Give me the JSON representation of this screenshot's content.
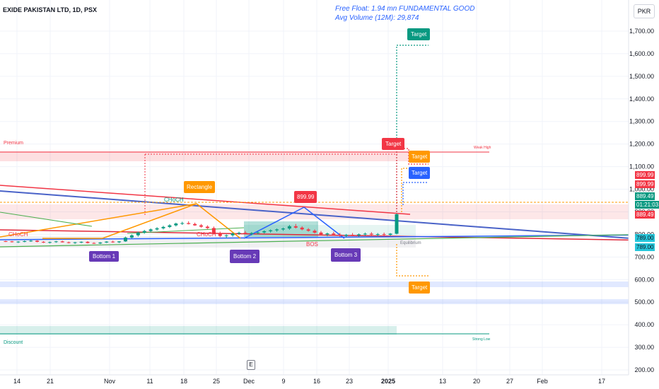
{
  "header": {
    "symbol_title": "EXIDE PAKISTAN LTD, 1D, PSX",
    "free_float": "Free Float: 1.94 mn FUNDAMENTAL GOOD",
    "avg_volume": "Avg Volume (12M): 29,874",
    "currency": "PKR"
  },
  "colors": {
    "up": "#089981",
    "down": "#f23645",
    "trend_red": "#e0283a",
    "trend_blue": "#2962ff",
    "trend_orange": "#ff9800",
    "trend_green": "#4caf50",
    "label_purple": "#673ab7",
    "label_teal": "#089981"
  },
  "chart_data": {
    "type": "candlestick",
    "y_axis": {
      "ylim": [
        200,
        1800
      ],
      "ticks": [
        200,
        300,
        400,
        500,
        600,
        700,
        800,
        900,
        1000,
        1100,
        1200,
        1300,
        1400,
        1500,
        1600,
        1700
      ],
      "tick_labels": [
        "200.00",
        "300.00",
        "400.00",
        "500.00",
        "600.00",
        "700.00",
        "800.00",
        "900.00",
        "1,000.00",
        "1,100.00",
        "1,200.00",
        "1,300.00",
        "1,400.00",
        "1,500.00",
        "1,600.00",
        "1,700.00"
      ]
    },
    "x_axis": {
      "tick_labels": [
        "14",
        "21",
        "Nov",
        "11",
        "18",
        "25",
        "Dec",
        "9",
        "16",
        "23",
        "2025",
        "13",
        "20",
        "27",
        "Feb",
        "17"
      ]
    },
    "price_labels": [
      {
        "text": "899.99",
        "color": "#f23645"
      },
      {
        "text": "899.99",
        "color": "#f23645"
      },
      {
        "text": "889.49",
        "color": "#089981"
      },
      {
        "text": "01:21:03",
        "color": "#089981"
      },
      {
        "text": "889.49",
        "color": "#f23645"
      },
      {
        "text": "789.00",
        "color": "#00bcd4"
      },
      {
        "text": "789.00",
        "color": "#00bcd4"
      }
    ],
    "zones": [
      {
        "label": "Premium",
        "color": "#f23645"
      },
      {
        "label": "Equilibrium",
        "color": "#787b86"
      },
      {
        "label": "Discount",
        "color": "#089981"
      },
      {
        "label": "Weak High",
        "color": "#f23645"
      },
      {
        "label": "Strong Low",
        "color": "#089981"
      }
    ],
    "annotations": [
      {
        "text": "Bottom 1",
        "kind": "pattern"
      },
      {
        "text": "Bottom 2",
        "kind": "pattern"
      },
      {
        "text": "Bottom 3",
        "kind": "pattern"
      },
      {
        "text": "Rectangle",
        "kind": "pattern"
      },
      {
        "text": "899.99",
        "kind": "price"
      },
      {
        "text": "Target",
        "kind": "target-green"
      },
      {
        "text": "Target",
        "kind": "target-red"
      },
      {
        "text": "Target",
        "kind": "target-orange"
      },
      {
        "text": "Target",
        "kind": "target-blue"
      },
      {
        "text": "Target",
        "kind": "target-orange-low"
      },
      {
        "text": "CHoCH",
        "kind": "structure"
      },
      {
        "text": "CHoCH",
        "kind": "structure"
      },
      {
        "text": "CHoCH",
        "kind": "structure"
      },
      {
        "text": "BOS",
        "kind": "structure"
      }
    ],
    "candles": [
      [
        770,
        772,
        766,
        769
      ],
      [
        769,
        771,
        764,
        766
      ],
      [
        766,
        770,
        762,
        768
      ],
      [
        768,
        773,
        765,
        770
      ],
      [
        770,
        775,
        767,
        772
      ],
      [
        772,
        774,
        765,
        767
      ],
      [
        767,
        770,
        762,
        764
      ],
      [
        764,
        768,
        760,
        766
      ],
      [
        766,
        771,
        763,
        769
      ],
      [
        769,
        772,
        764,
        765
      ],
      [
        765,
        768,
        760,
        762
      ],
      [
        762,
        767,
        758,
        765
      ],
      [
        765,
        769,
        761,
        767
      ],
      [
        767,
        770,
        760,
        762
      ],
      [
        762,
        765,
        758,
        760
      ],
      [
        760,
        766,
        757,
        764
      ],
      [
        764,
        770,
        762,
        768
      ],
      [
        768,
        772,
        763,
        765
      ],
      [
        765,
        770,
        762,
        769
      ],
      [
        769,
        790,
        767,
        786
      ],
      [
        786,
        800,
        782,
        796
      ],
      [
        796,
        812,
        790,
        808
      ],
      [
        808,
        820,
        803,
        815
      ],
      [
        815,
        826,
        810,
        822
      ],
      [
        822,
        832,
        817,
        827
      ],
      [
        827,
        838,
        822,
        833
      ],
      [
        833,
        845,
        828,
        840
      ],
      [
        840,
        852,
        835,
        848
      ],
      [
        848,
        856,
        842,
        850
      ],
      [
        850,
        858,
        844,
        846
      ],
      [
        846,
        852,
        838,
        840
      ],
      [
        840,
        846,
        830,
        834
      ],
      [
        834,
        840,
        824,
        828
      ],
      [
        828,
        835,
        800,
        806
      ],
      [
        806,
        812,
        788,
        793
      ],
      [
        793,
        800,
        784,
        796
      ],
      [
        796,
        808,
        790,
        804
      ],
      [
        804,
        812,
        798,
        807
      ],
      [
        807,
        815,
        800,
        802
      ],
      [
        802,
        810,
        796,
        806
      ],
      [
        806,
        812,
        800,
        809
      ],
      [
        809,
        818,
        804,
        814
      ],
      [
        814,
        822,
        808,
        818
      ],
      [
        818,
        826,
        812,
        822
      ],
      [
        822,
        830,
        816,
        826
      ],
      [
        826,
        842,
        820,
        836
      ],
      [
        836,
        846,
        826,
        830
      ],
      [
        830,
        836,
        818,
        822
      ],
      [
        822,
        828,
        812,
        816
      ],
      [
        816,
        822,
        804,
        808
      ],
      [
        808,
        815,
        796,
        800
      ],
      [
        800,
        808,
        792,
        804
      ],
      [
        804,
        812,
        796,
        799
      ],
      [
        799,
        806,
        790,
        794
      ],
      [
        794,
        802,
        788,
        798
      ],
      [
        798,
        806,
        792,
        796
      ],
      [
        796,
        804,
        790,
        800
      ],
      [
        800,
        808,
        794,
        803
      ],
      [
        803,
        810,
        796,
        799
      ],
      [
        799,
        806,
        792,
        801
      ],
      [
        801,
        808,
        795,
        798
      ],
      [
        798,
        806,
        794,
        803
      ],
      [
        803,
        893,
        800,
        889
      ]
    ]
  }
}
